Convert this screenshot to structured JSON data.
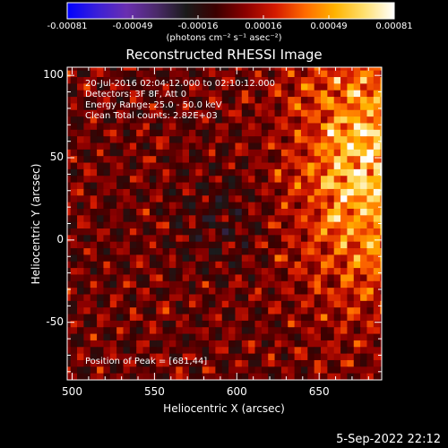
{
  "colorbar": {
    "tick_labels": [
      "-0.00081",
      "-0.00049",
      "-0.00016",
      "0.00016",
      "0.00049",
      "0.00081"
    ],
    "units": "(photons cm⁻² s⁻¹ asec⁻²)",
    "stops": [
      "#0000ff",
      "#3a1fd8",
      "#6a2fb0",
      "#4b2a6a",
      "#1a1a1a",
      "#3b0000",
      "#8b0000",
      "#d41a00",
      "#ff6a00",
      "#ffb300",
      "#ffe070",
      "#ffffff"
    ]
  },
  "title": "Reconstructed RHESSI Image",
  "annotations": {
    "line1": "20-Jul-2016 02:04:12.000 to 02:10:12.000",
    "line2": "Detectors: 3F 8F, Att 0",
    "line3": "Energy Range: 25.0 - 50.0 keV",
    "line4": "Clean     Total counts: 2.82E+03",
    "peak": "Position of Peak = [681,44]"
  },
  "footer": {
    "timestamp": "5-Sep-2022 22:12"
  },
  "chart_data": {
    "type": "heatmap",
    "title": "Reconstructed RHESSI Image",
    "xlabel": "Heliocentric X (arcsec)",
    "ylabel": "Heliocentric Y (arcsec)",
    "xlim": [
      497,
      688
    ],
    "ylim": [
      -85,
      105
    ],
    "xticks": [
      500,
      550,
      600,
      650
    ],
    "yticks": [
      -50,
      0,
      50,
      100
    ],
    "xtick_labels": [
      "500",
      "550",
      "600",
      "650"
    ],
    "ytick_labels": [
      "-50",
      "0",
      "50",
      "100"
    ],
    "value_range": [
      -0.00081,
      0.00081
    ],
    "peak_position": [
      681,
      44
    ],
    "grid": false
  }
}
